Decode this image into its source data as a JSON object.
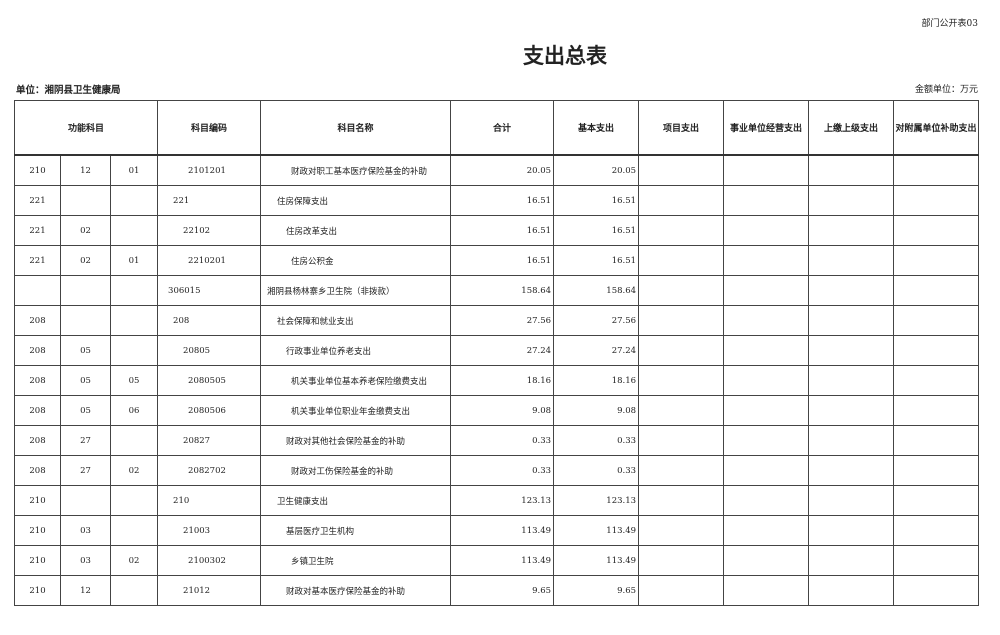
{
  "form_tag": "部门公开表03",
  "title": "支出总表",
  "unit_label": "单位：湘阴县卫生健康局",
  "amount_unit": "金额单位：万元",
  "headers": [
    "功能科目",
    "科目编码",
    "科目名称",
    "合计",
    "基本支出",
    "项目支出",
    "事业单位经营支出",
    "上缴上级支出",
    "对附属单位补助支出"
  ],
  "rows": [
    {
      "c1": "210",
      "c2": "12",
      "c3": "01",
      "code": "2101201",
      "name": "财政对职工基本医疗保险基金的补助",
      "total": "20.05",
      "basic": "20.05"
    },
    {
      "c1": "221",
      "c2": "",
      "c3": "",
      "code": "221",
      "name": "住房保障支出",
      "total": "16.51",
      "basic": "16.51"
    },
    {
      "c1": "221",
      "c2": "02",
      "c3": "",
      "code": "22102",
      "name": "住房改革支出",
      "total": "16.51",
      "basic": "16.51"
    },
    {
      "c1": "221",
      "c2": "02",
      "c3": "01",
      "code": "2210201",
      "name": "住房公积金",
      "total": "16.51",
      "basic": "16.51"
    },
    {
      "c1": "",
      "c2": "",
      "c3": "",
      "code": "306015",
      "name": "湘阴县杨林寨乡卫生院（非拨款）",
      "total": "158.64",
      "basic": "158.64"
    },
    {
      "c1": "208",
      "c2": "",
      "c3": "",
      "code": "208",
      "name": "社会保障和就业支出",
      "total": "27.56",
      "basic": "27.56"
    },
    {
      "c1": "208",
      "c2": "05",
      "c3": "",
      "code": "20805",
      "name": "行政事业单位养老支出",
      "total": "27.24",
      "basic": "27.24"
    },
    {
      "c1": "208",
      "c2": "05",
      "c3": "05",
      "code": "2080505",
      "name": "机关事业单位基本养老保险缴费支出",
      "total": "18.16",
      "basic": "18.16"
    },
    {
      "c1": "208",
      "c2": "05",
      "c3": "06",
      "code": "2080506",
      "name": "机关事业单位职业年金缴费支出",
      "total": "9.08",
      "basic": "9.08"
    },
    {
      "c1": "208",
      "c2": "27",
      "c3": "",
      "code": "20827",
      "name": "财政对其他社会保险基金的补助",
      "total": "0.33",
      "basic": "0.33"
    },
    {
      "c1": "208",
      "c2": "27",
      "c3": "02",
      "code": "2082702",
      "name": "财政对工伤保险基金的补助",
      "total": "0.33",
      "basic": "0.33"
    },
    {
      "c1": "210",
      "c2": "",
      "c3": "",
      "code": "210",
      "name": "卫生健康支出",
      "total": "123.13",
      "basic": "123.13"
    },
    {
      "c1": "210",
      "c2": "03",
      "c3": "",
      "code": "21003",
      "name": "基层医疗卫生机构",
      "total": "113.49",
      "basic": "113.49"
    },
    {
      "c1": "210",
      "c2": "03",
      "c3": "02",
      "code": "2100302",
      "name": "乡镇卫生院",
      "total": "113.49",
      "basic": "113.49"
    },
    {
      "c1": "210",
      "c2": "12",
      "c3": "",
      "code": "21012",
      "name": "财政对基本医疗保险基金的补助",
      "total": "9.65",
      "basic": "9.65"
    }
  ]
}
